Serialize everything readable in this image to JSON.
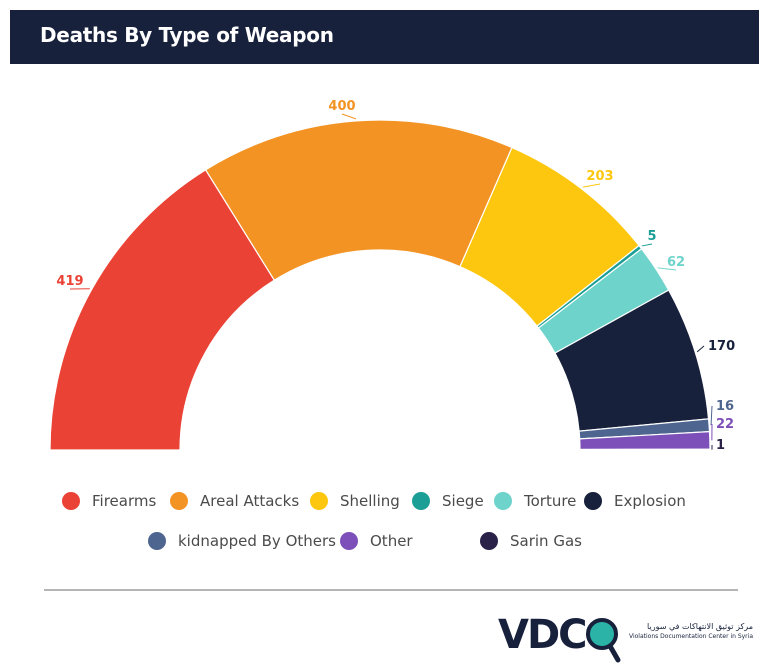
{
  "title": "Deaths By Type of Weapon",
  "chart_data": {
    "type": "pie",
    "title": "Deaths By Type of Weapon",
    "categories": [
      "Firearms",
      "Areal Attacks",
      "Shelling",
      "Siege",
      "Torture",
      "Explosion",
      "kidnapped By Others",
      "Other",
      "Sarin Gas"
    ],
    "values": [
      419,
      400,
      203,
      5,
      62,
      170,
      16,
      22,
      1
    ],
    "colors": [
      "#ea4235",
      "#f39323",
      "#fdc70f",
      "#1a9e96",
      "#6ed3cb",
      "#17213b",
      "#4e6590",
      "#7d4fb8",
      "#2a2148"
    ],
    "data_labels": [
      "419",
      "400",
      "203",
      "5",
      "62",
      "170",
      "16",
      "22",
      "1"
    ],
    "shape": "half-donut",
    "legend_position": "bottom"
  },
  "legend": [
    {
      "label": "Firearms",
      "color": "#ea4235"
    },
    {
      "label": "Areal Attacks",
      "color": "#f39323"
    },
    {
      "label": "Shelling",
      "color": "#fdc70f"
    },
    {
      "label": "Siege",
      "color": "#1a9e96"
    },
    {
      "label": "Torture",
      "color": "#6ed3cb"
    },
    {
      "label": "Explosion",
      "color": "#17213b"
    },
    {
      "label": "kidnapped By Others",
      "color": "#4e6590"
    },
    {
      "label": "Other",
      "color": "#7d4fb8"
    },
    {
      "label": "Sarin Gas",
      "color": "#2a2148"
    }
  ],
  "logo": {
    "name": "VDC",
    "arabic": "مركز توثيق الانتهاكات في سوريا",
    "english": "Violations Documentation Center in Syria"
  }
}
